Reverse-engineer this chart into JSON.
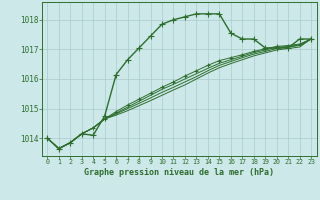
{
  "title": "Graphe pression niveau de la mer (hPa)",
  "bg_color": "#cce8e8",
  "grid_color": "#aacccc",
  "line_color": "#2d6e2d",
  "x_ticks": [
    0,
    1,
    2,
    3,
    4,
    5,
    6,
    7,
    8,
    9,
    10,
    11,
    12,
    13,
    14,
    15,
    16,
    17,
    18,
    19,
    20,
    21,
    22,
    23
  ],
  "ylim": [
    1013.4,
    1018.6
  ],
  "yticks": [
    1014,
    1015,
    1016,
    1017,
    1018
  ],
  "series": [
    {
      "y": [
        1014.0,
        1013.65,
        1013.85,
        1014.15,
        1014.1,
        1014.75,
        1016.15,
        1016.65,
        1017.05,
        1017.45,
        1017.85,
        1018.0,
        1018.1,
        1018.2,
        1018.2,
        1018.2,
        1017.55,
        1017.35,
        1017.35,
        1017.05,
        1017.05,
        1017.05,
        1017.35,
        1017.35
      ],
      "marker": "+",
      "linewidth": 1.0,
      "markersize": 4
    },
    {
      "y": [
        1014.0,
        1013.65,
        1013.85,
        1014.15,
        1014.35,
        1014.65,
        1014.78,
        1014.93,
        1015.1,
        1015.27,
        1015.45,
        1015.63,
        1015.8,
        1016.0,
        1016.2,
        1016.38,
        1016.52,
        1016.65,
        1016.78,
        1016.88,
        1016.98,
        1017.03,
        1017.08,
        1017.35
      ],
      "marker": null,
      "linewidth": 0.7,
      "markersize": 0
    },
    {
      "y": [
        1014.0,
        1013.65,
        1013.85,
        1014.15,
        1014.35,
        1014.65,
        1014.82,
        1015.0,
        1015.18,
        1015.36,
        1015.55,
        1015.72,
        1015.9,
        1016.08,
        1016.28,
        1016.46,
        1016.59,
        1016.72,
        1016.84,
        1016.93,
        1017.03,
        1017.08,
        1017.13,
        1017.35
      ],
      "marker": null,
      "linewidth": 0.7,
      "markersize": 0
    },
    {
      "y": [
        1014.0,
        1013.65,
        1013.85,
        1014.15,
        1014.35,
        1014.65,
        1014.85,
        1015.05,
        1015.25,
        1015.45,
        1015.65,
        1015.82,
        1016.0,
        1016.18,
        1016.36,
        1016.53,
        1016.65,
        1016.77,
        1016.89,
        1016.98,
        1017.07,
        1017.1,
        1017.15,
        1017.35
      ],
      "marker": null,
      "linewidth": 0.7,
      "markersize": 0
    },
    {
      "y": [
        1014.0,
        1013.65,
        1013.85,
        1014.15,
        1014.35,
        1014.65,
        1014.9,
        1015.12,
        1015.32,
        1015.52,
        1015.72,
        1015.9,
        1016.1,
        1016.28,
        1016.46,
        1016.62,
        1016.72,
        1016.82,
        1016.93,
        1017.02,
        1017.1,
        1017.13,
        1017.18,
        1017.35
      ],
      "marker": "+",
      "linewidth": 0.7,
      "markersize": 3
    }
  ]
}
